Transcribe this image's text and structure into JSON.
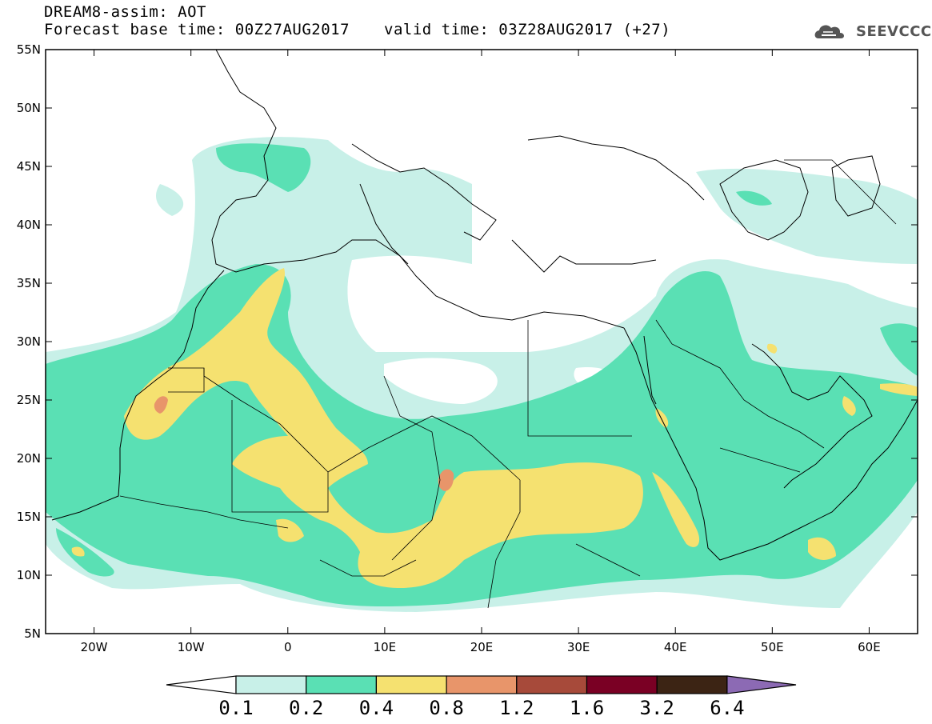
{
  "header": {
    "title": "DREAM8-assim: AOT",
    "base_time": "Forecast base time: 00Z27AUG2017",
    "valid_time": "valid time: 03Z28AUG2017 (+27)",
    "logo_text": "SEEVCCC"
  },
  "axes": {
    "x_ticks": [
      "20W",
      "10W",
      "0",
      "10E",
      "20E",
      "30E",
      "40E",
      "50E",
      "60E"
    ],
    "x_values": [
      -20,
      -10,
      0,
      10,
      20,
      30,
      40,
      50,
      60
    ],
    "y_ticks": [
      "55N",
      "50N",
      "45N",
      "40N",
      "35N",
      "30N",
      "25N",
      "20N",
      "15N",
      "10N",
      "5N"
    ],
    "y_values": [
      55,
      50,
      45,
      40,
      35,
      30,
      25,
      20,
      15,
      10,
      5
    ],
    "lon_range": [
      -25,
      65
    ],
    "lat_range": [
      5,
      55
    ]
  },
  "legend": {
    "labels": [
      "0.1",
      "0.2",
      "0.4",
      "0.8",
      "1.2",
      "1.6",
      "3.2",
      "6.4"
    ],
    "colors": [
      "#ffffff",
      "#c8f0e8",
      "#5ae0b4",
      "#f5e170",
      "#e8956a",
      "#a74a3a",
      "#7a0024",
      "#3c2414",
      "#8c6ab4"
    ]
  }
}
